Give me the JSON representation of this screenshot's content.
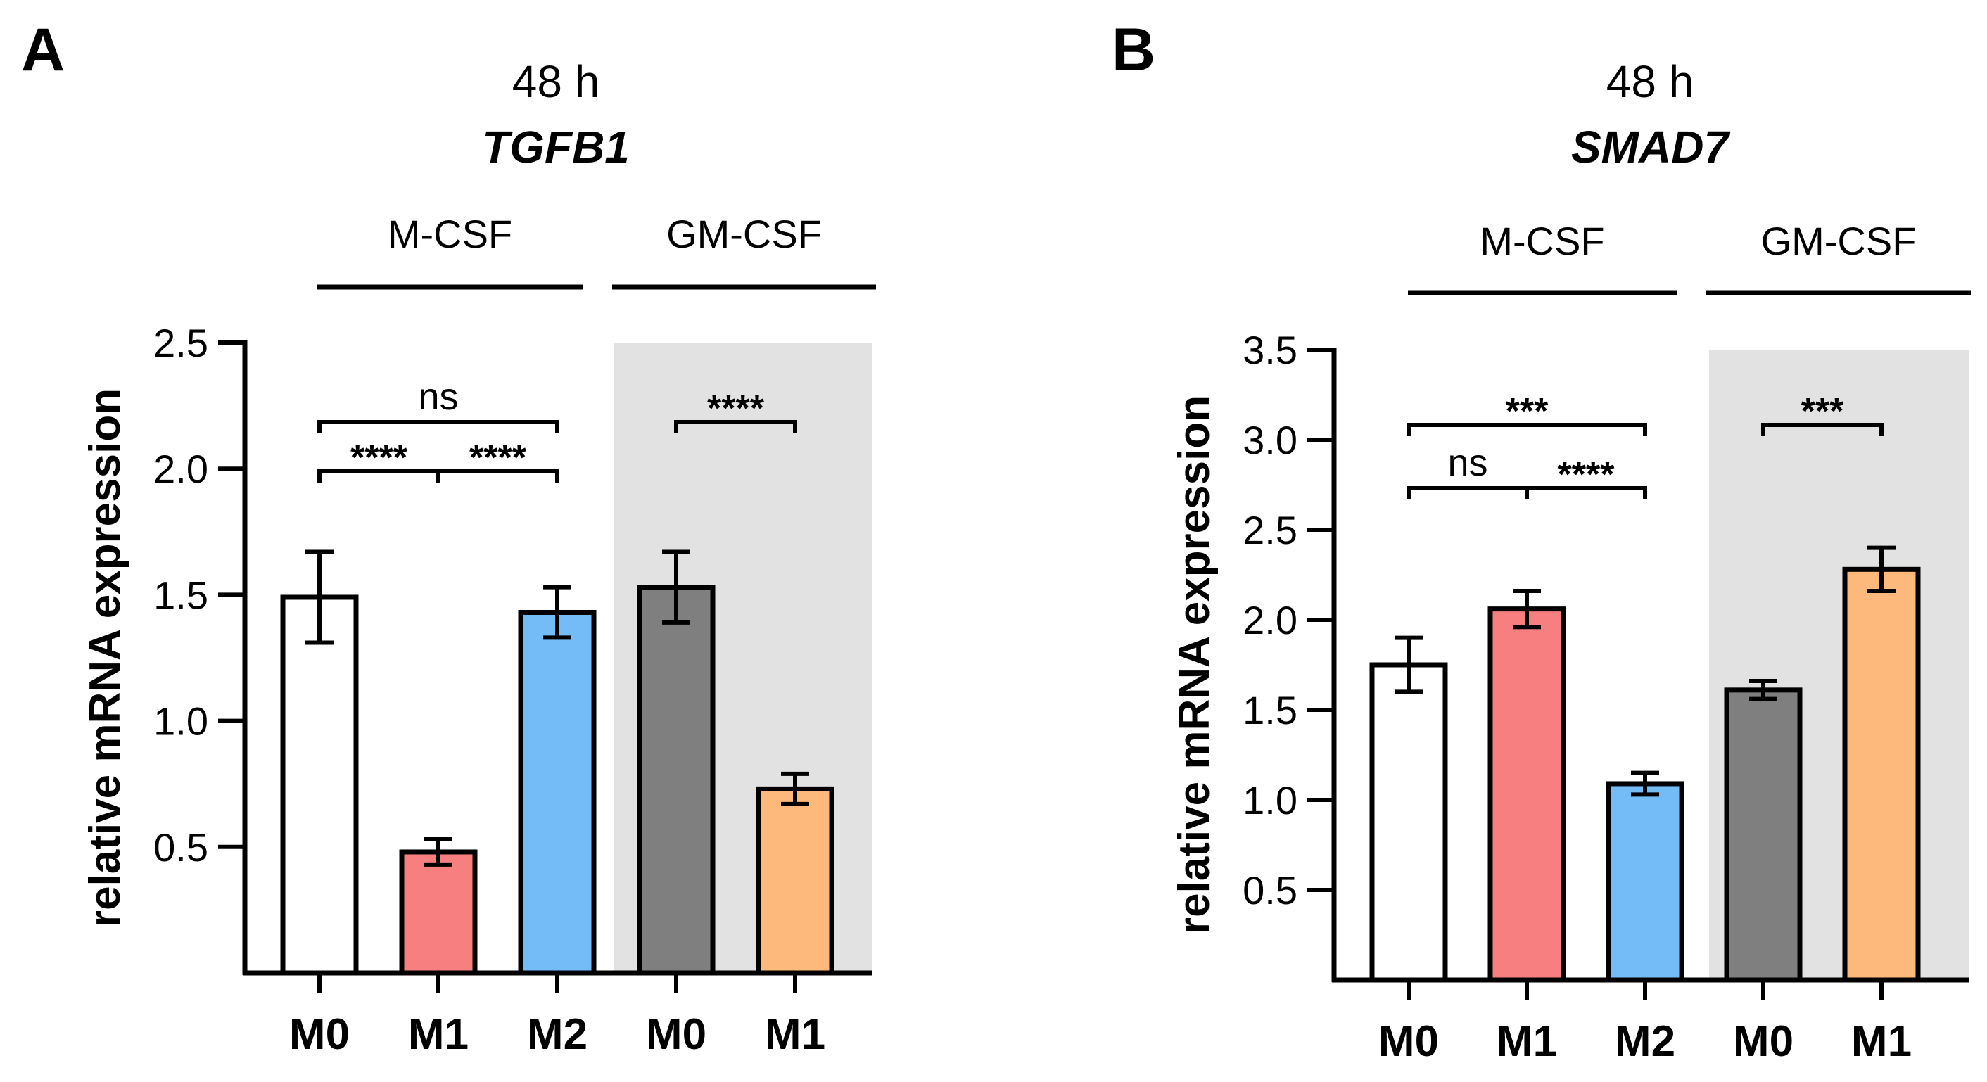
{
  "chart_data": [
    {
      "panel": "A",
      "type": "bar",
      "title_line1": "48 h",
      "title_line2": "TGFB1",
      "ylabel": "relative mRNA expression",
      "ylim": [
        0,
        2.5
      ],
      "yticks": [
        "0.5",
        "1.0",
        "1.5",
        "2.0",
        "2.5"
      ],
      "groups": [
        {
          "label": "M-CSF",
          "shaded": false,
          "categories": [
            "M0",
            "M1",
            "M2"
          ]
        },
        {
          "label": "GM-CSF",
          "shaded": true,
          "categories": [
            "M0",
            "M1"
          ]
        }
      ],
      "categories": [
        "M0",
        "M1",
        "M2",
        "M0",
        "M1"
      ],
      "values": [
        1.49,
        0.48,
        1.43,
        1.53,
        0.73
      ],
      "errors": [
        0.18,
        0.05,
        0.1,
        0.14,
        0.06
      ],
      "bar_colors": [
        "#ffffff",
        "#f87f7f",
        "#74bcf8",
        "#7f7f7f",
        "#fdb87c"
      ],
      "significance": [
        {
          "from": 0,
          "to": 2,
          "label": "ns"
        },
        {
          "from": 0,
          "to": 1,
          "label": "****"
        },
        {
          "from": 1,
          "to": 2,
          "label": "****"
        },
        {
          "from": 3,
          "to": 4,
          "label": "****"
        }
      ]
    },
    {
      "panel": "B",
      "type": "bar",
      "title_line1": "48 h",
      "title_line2": "SMAD7",
      "ylabel": "relative mRNA expression",
      "ylim": [
        0,
        3.5
      ],
      "yticks": [
        "0.5",
        "1.0",
        "1.5",
        "2.0",
        "2.5",
        "3.0",
        "3.5"
      ],
      "groups": [
        {
          "label": "M-CSF",
          "shaded": false,
          "categories": [
            "M0",
            "M1",
            "M2"
          ]
        },
        {
          "label": "GM-CSF",
          "shaded": true,
          "categories": [
            "M0",
            "M1"
          ]
        }
      ],
      "categories": [
        "M0",
        "M1",
        "M2",
        "M0",
        "M1"
      ],
      "values": [
        1.75,
        2.06,
        1.09,
        1.61,
        2.28
      ],
      "errors": [
        0.15,
        0.1,
        0.06,
        0.05,
        0.12
      ],
      "bar_colors": [
        "#ffffff",
        "#f87f7f",
        "#74bcf8",
        "#7f7f7f",
        "#fdb87c"
      ],
      "significance": [
        {
          "from": 0,
          "to": 2,
          "label": "***"
        },
        {
          "from": 0,
          "to": 1,
          "label": "ns"
        },
        {
          "from": 1,
          "to": 2,
          "label": "****"
        },
        {
          "from": 3,
          "to": 4,
          "label": "***"
        }
      ]
    }
  ]
}
